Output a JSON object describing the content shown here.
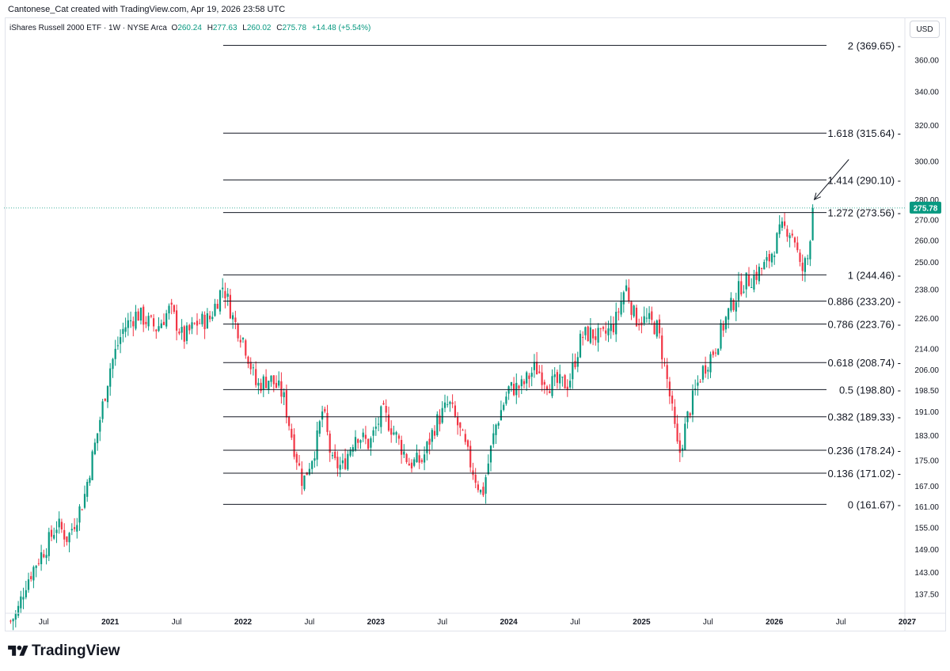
{
  "header": {
    "credit": "Cantonese_Cat created with TradingView.com, Apr 19, 2026 23:58 UTC",
    "symbol": "iShares Russell 2000 ETF · 1W · NYSE Arca",
    "ohlc": [
      {
        "k": "O",
        "v": "260.24"
      },
      {
        "k": "H",
        "v": "277.63"
      },
      {
        "k": "L",
        "v": "260.02"
      },
      {
        "k": "C",
        "v": "275.78"
      }
    ],
    "change": "+14.48 (+5.54%)",
    "currency": "USD"
  },
  "footer": {
    "brand": "TradingView"
  },
  "colors": {
    "up": "#089981",
    "down": "#f23645",
    "grid": "#e0e3eb",
    "text": "#131722"
  },
  "chart_data": {
    "type": "candlestick",
    "title": "iShares Russell 2000 ETF · 1W · NYSE Arca",
    "currency": "USD",
    "last_price": 275.78,
    "last_price_label": "275.78",
    "y_ticks": [
      137.5,
      143,
      149,
      155,
      161,
      167,
      175,
      183,
      191,
      198.5,
      206,
      214,
      226,
      238,
      250,
      260,
      270,
      280,
      300,
      320,
      340,
      360
    ],
    "y_tick_labels": [
      "137.50",
      "143.00",
      "149.00",
      "155.00",
      "161.00",
      "167.00",
      "175.00",
      "183.00",
      "191.00",
      "198.50",
      "206.00",
      "214.00",
      "226.00",
      "238.00",
      "250.00",
      "260.00",
      "270.00",
      "280.00",
      "300.00",
      "320.00",
      "340.00",
      "360.00"
    ],
    "x_ticks": [
      {
        "label": "Jul",
        "t": 2020.5,
        "bold": false
      },
      {
        "label": "2021",
        "t": 2021.0,
        "bold": true
      },
      {
        "label": "Jul",
        "t": 2021.5,
        "bold": false
      },
      {
        "label": "2022",
        "t": 2022.0,
        "bold": true
      },
      {
        "label": "Jul",
        "t": 2022.5,
        "bold": false
      },
      {
        "label": "2023",
        "t": 2023.0,
        "bold": true
      },
      {
        "label": "Jul",
        "t": 2023.5,
        "bold": false
      },
      {
        "label": "2024",
        "t": 2024.0,
        "bold": true
      },
      {
        "label": "Jul",
        "t": 2024.5,
        "bold": false
      },
      {
        "label": "2025",
        "t": 2025.0,
        "bold": true
      },
      {
        "label": "Jul",
        "t": 2025.5,
        "bold": false
      },
      {
        "label": "2026",
        "t": 2026.0,
        "bold": true
      },
      {
        "label": "Jul",
        "t": 2026.5,
        "bold": false
      },
      {
        "label": "2027",
        "t": 2027.0,
        "bold": true
      }
    ],
    "fib_levels": [
      {
        "ratio": "2",
        "price": 369.65,
        "label": "2 (369.65)"
      },
      {
        "ratio": "1.618",
        "price": 315.64,
        "label": "1.618 (315.64)"
      },
      {
        "ratio": "1.414",
        "price": 290.1,
        "label": "1.414 (290.10)"
      },
      {
        "ratio": "1.272",
        "price": 273.56,
        "label": "1.272 (273.56)"
      },
      {
        "ratio": "1",
        "price": 244.46,
        "label": "1 (244.46)"
      },
      {
        "ratio": "0.886",
        "price": 233.2,
        "label": "0.886 (233.20)"
      },
      {
        "ratio": "0.786",
        "price": 223.76,
        "label": "0.786 (223.76)"
      },
      {
        "ratio": "0.618",
        "price": 208.74,
        "label": "0.618 (208.74)"
      },
      {
        "ratio": "0.5",
        "price": 198.8,
        "label": "0.5 (198.80)"
      },
      {
        "ratio": "0.382",
        "price": 189.33,
        "label": "0.382 (189.33)"
      },
      {
        "ratio": "0.236",
        "price": 178.24,
        "label": "0.236 (178.24)"
      },
      {
        "ratio": "0.136",
        "price": 171.02,
        "label": "0.136 (171.02)"
      },
      {
        "ratio": "0",
        "price": 161.67,
        "label": "0 (161.67)"
      }
    ],
    "fib_start_date": 2021.85,
    "annotation_arrow": {
      "from": {
        "t": 2026.56,
        "price": 301
      },
      "to": {
        "t": 2026.3,
        "price": 280
      }
    },
    "price_anchors": [
      [
        2020.25,
        131
      ],
      [
        2020.3,
        133
      ],
      [
        2020.36,
        140
      ],
      [
        2020.45,
        146
      ],
      [
        2020.52,
        150
      ],
      [
        2020.6,
        156
      ],
      [
        2020.68,
        152
      ],
      [
        2020.8,
        163
      ],
      [
        2020.9,
        183
      ],
      [
        2021.0,
        207
      ],
      [
        2021.1,
        222
      ],
      [
        2021.2,
        228
      ],
      [
        2021.35,
        222
      ],
      [
        2021.45,
        230
      ],
      [
        2021.55,
        218
      ],
      [
        2021.65,
        224
      ],
      [
        2021.75,
        226
      ],
      [
        2021.85,
        240
      ],
      [
        2021.93,
        225
      ],
      [
        2022.0,
        218
      ],
      [
        2022.1,
        200
      ],
      [
        2022.2,
        203
      ],
      [
        2022.3,
        197
      ],
      [
        2022.38,
        180
      ],
      [
        2022.45,
        168
      ],
      [
        2022.55,
        180
      ],
      [
        2022.6,
        192
      ],
      [
        2022.67,
        174
      ],
      [
        2022.75,
        173
      ],
      [
        2022.85,
        184
      ],
      [
        2022.95,
        180
      ],
      [
        2023.05,
        191
      ],
      [
        2023.15,
        183
      ],
      [
        2023.25,
        174
      ],
      [
        2023.35,
        175
      ],
      [
        2023.45,
        187
      ],
      [
        2023.55,
        194
      ],
      [
        2023.62,
        186
      ],
      [
        2023.72,
        173
      ],
      [
        2023.8,
        164
      ],
      [
        2023.9,
        186
      ],
      [
        2024.0,
        199
      ],
      [
        2024.1,
        200
      ],
      [
        2024.2,
        207
      ],
      [
        2024.3,
        201
      ],
      [
        2024.45,
        201
      ],
      [
        2024.55,
        219
      ],
      [
        2024.62,
        220
      ],
      [
        2024.7,
        218
      ],
      [
        2024.8,
        224
      ],
      [
        2024.88,
        240
      ],
      [
        2024.95,
        226
      ],
      [
        2025.05,
        225
      ],
      [
        2025.12,
        222
      ],
      [
        2025.2,
        200
      ],
      [
        2025.28,
        176
      ],
      [
        2025.35,
        190
      ],
      [
        2025.45,
        205
      ],
      [
        2025.55,
        214
      ],
      [
        2025.65,
        228
      ],
      [
        2025.75,
        240
      ],
      [
        2025.85,
        244
      ],
      [
        2025.95,
        250
      ],
      [
        2026.05,
        265
      ],
      [
        2026.1,
        266
      ],
      [
        2026.15,
        262
      ],
      [
        2026.2,
        245
      ],
      [
        2026.25,
        252
      ],
      [
        2026.29,
        276
      ]
    ]
  }
}
